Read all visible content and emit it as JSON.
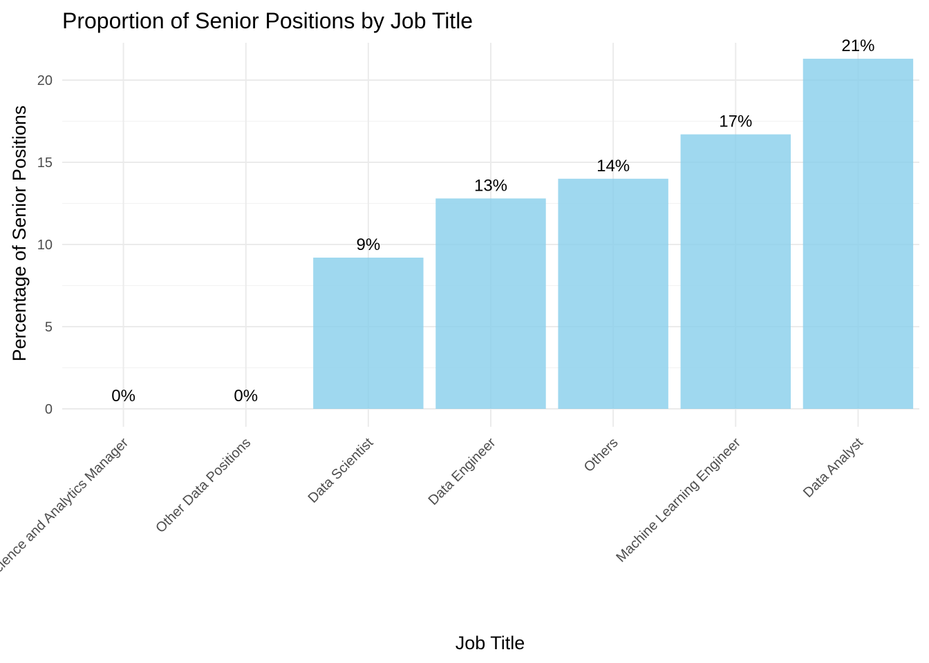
{
  "chart_data": {
    "type": "bar",
    "title": "Proportion of Senior Positions by Job Title",
    "xlabel": "Job Title",
    "ylabel": "Percentage of Senior Positions",
    "categories": [
      "Data Science and Analytics Manager",
      "Other Data Positions",
      "Data Scientist",
      "Data Engineer",
      "Others",
      "Machine Learning Engineer",
      "Data Analyst"
    ],
    "values": [
      0,
      0,
      9.2,
      12.8,
      14.0,
      16.7,
      21.3
    ],
    "data_labels": [
      "0%",
      "0%",
      "9%",
      "13%",
      "14%",
      "17%",
      "21%"
    ],
    "yticks": [
      0,
      5,
      10,
      15,
      20
    ],
    "ylim": [
      -1.1,
      22.4
    ],
    "bar_color": "#87CEEB",
    "grid": true,
    "legend": "none"
  }
}
